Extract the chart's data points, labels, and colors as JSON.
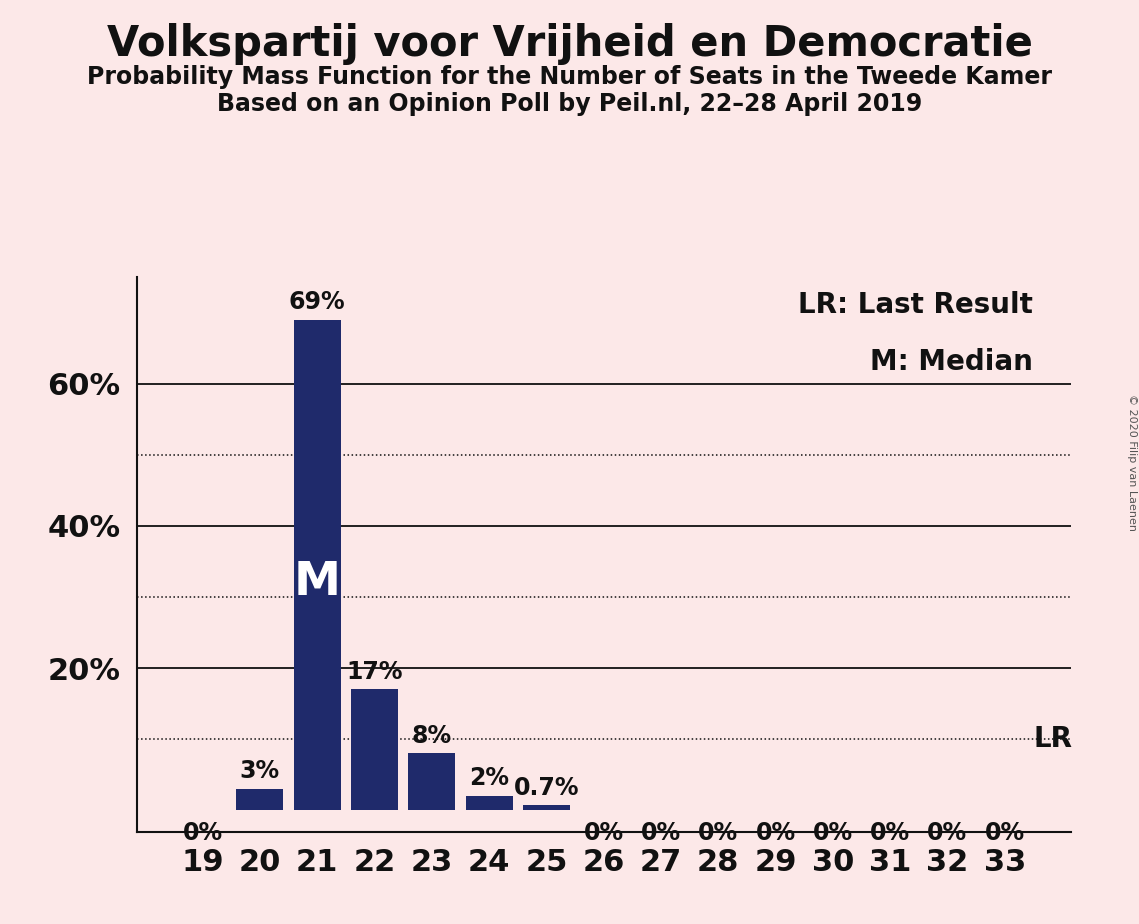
{
  "title": "Volkspartij voor Vrijheid en Democratie",
  "subtitle1": "Probability Mass Function for the Number of Seats in the Tweede Kamer",
  "subtitle2": "Based on an Opinion Poll by Peil.nl, 22–28 April 2019",
  "copyright": "© 2020 Filip van Laenen",
  "categories": [
    19,
    20,
    21,
    22,
    23,
    24,
    25,
    26,
    27,
    28,
    29,
    30,
    31,
    32,
    33
  ],
  "values": [
    0.0,
    3.0,
    69.0,
    17.0,
    8.0,
    2.0,
    0.7,
    0.0,
    0.0,
    0.0,
    0.0,
    0.0,
    0.0,
    0.0,
    0.0
  ],
  "labels": [
    "0%",
    "3%",
    "69%",
    "17%",
    "8%",
    "2%",
    "0.7%",
    "0%",
    "0%",
    "0%",
    "0%",
    "0%",
    "0%",
    "0%",
    "0%"
  ],
  "bar_color": "#1f2a6b",
  "background_color": "#fce8e8",
  "text_color": "#111111",
  "grid_color": "#111111",
  "median_label": "M",
  "median_bar": 21,
  "lr_value": 10.0,
  "lr_label": "LR",
  "legend_lr": "LR: Last Result",
  "legend_m": "M: Median",
  "ylim_max": 75,
  "solid_gridlines": [
    20,
    40,
    60
  ],
  "dotted_gridlines": [
    10,
    30,
    50
  ],
  "title_fontsize": 30,
  "subtitle_fontsize": 17,
  "axis_label_fontsize": 22,
  "bar_label_fontsize": 17,
  "legend_fontsize": 20,
  "median_fontsize": 34
}
